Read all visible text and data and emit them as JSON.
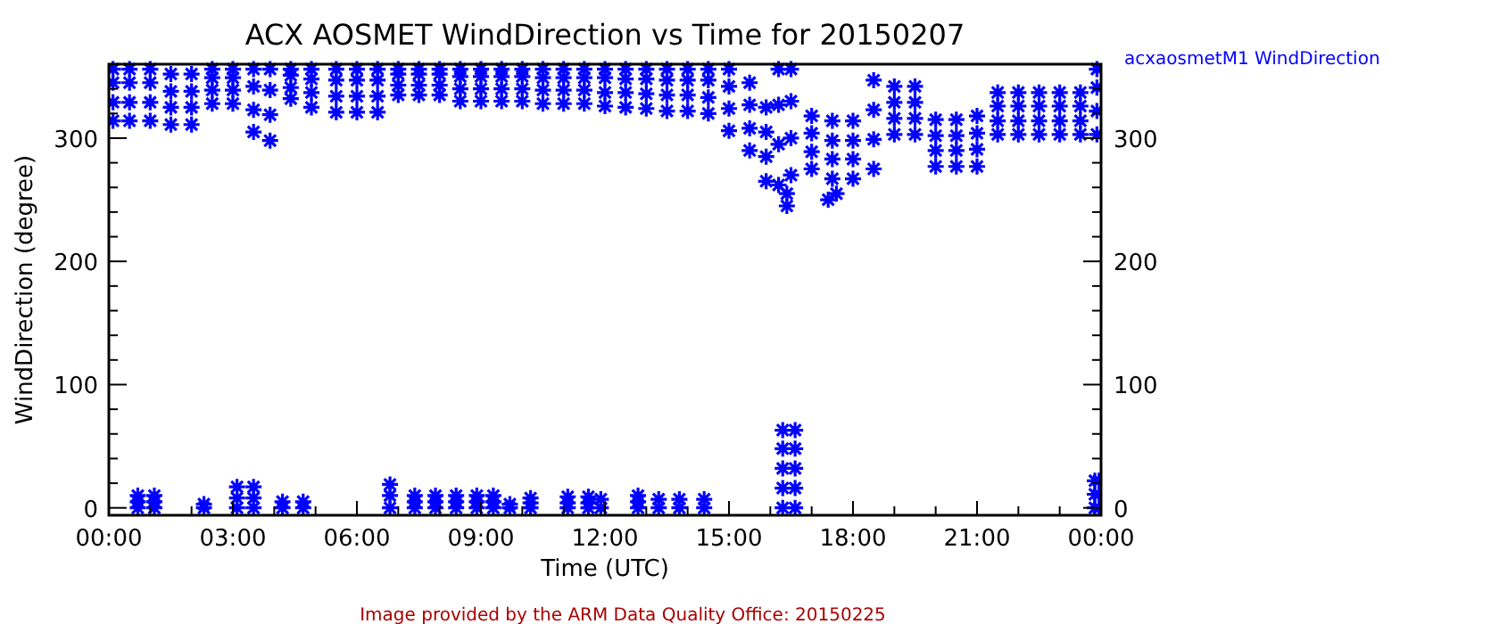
{
  "chart_data": {
    "type": "scatter",
    "title": "ACX AOSMET WindDirection vs Time for 20150207",
    "xlabel": "Time (UTC)",
    "ylabel": "WindDirection (degree)",
    "annotations": [
      "Image provided by the ARM Data Quality Office: 20150225"
    ],
    "xlim": [
      0,
      24
    ],
    "xticks": [
      {
        "value": 0,
        "label": "00:00"
      },
      {
        "value": 1,
        "label": null
      },
      {
        "value": 2,
        "label": null
      },
      {
        "value": 3,
        "label": "03:00"
      },
      {
        "value": 4,
        "label": null
      },
      {
        "value": 5,
        "label": null
      },
      {
        "value": 6,
        "label": "06:00"
      },
      {
        "value": 7,
        "label": null
      },
      {
        "value": 8,
        "label": null
      },
      {
        "value": 9,
        "label": "09:00"
      },
      {
        "value": 10,
        "label": null
      },
      {
        "value": 11,
        "label": null
      },
      {
        "value": 12,
        "label": "12:00"
      },
      {
        "value": 13,
        "label": null
      },
      {
        "value": 14,
        "label": null
      },
      {
        "value": 15,
        "label": "15:00"
      },
      {
        "value": 16,
        "label": null
      },
      {
        "value": 17,
        "label": null
      },
      {
        "value": 18,
        "label": "18:00"
      },
      {
        "value": 19,
        "label": null
      },
      {
        "value": 20,
        "label": null
      },
      {
        "value": 21,
        "label": "21:00"
      },
      {
        "value": 22,
        "label": null
      },
      {
        "value": 23,
        "label": null
      },
      {
        "value": 24,
        "label": "00:00"
      }
    ],
    "ylim": [
      -6,
      360
    ],
    "yticks": [
      0,
      {
        "value": 20,
        "label": null
      },
      {
        "value": 40,
        "label": null
      },
      {
        "value": 60,
        "label": null
      },
      {
        "value": 80,
        "label": null
      },
      100,
      {
        "value": 120,
        "label": null
      },
      {
        "value": 140,
        "label": null
      },
      {
        "value": 160,
        "label": null
      },
      {
        "value": 180,
        "label": null
      },
      200,
      {
        "value": 220,
        "label": null
      },
      {
        "value": 240,
        "label": null
      },
      {
        "value": 260,
        "label": null
      },
      {
        "value": 280,
        "label": null
      },
      300,
      {
        "value": 320,
        "label": null
      },
      {
        "value": 340,
        "label": null
      }
    ],
    "y2lim": [
      -6,
      360
    ],
    "y2ticks": [
      0,
      {
        "value": 20,
        "label": null
      },
      {
        "value": 40,
        "label": null
      },
      {
        "value": 60,
        "label": null
      },
      {
        "value": 80,
        "label": null
      },
      100,
      {
        "value": 120,
        "label": null
      },
      {
        "value": 140,
        "label": null
      },
      {
        "value": 160,
        "label": null
      },
      {
        "value": 180,
        "label": null
      },
      200,
      {
        "value": 220,
        "label": null
      },
      {
        "value": 240,
        "label": null
      },
      {
        "value": 260,
        "label": null
      },
      {
        "value": 280,
        "label": null
      },
      300,
      {
        "value": 320,
        "label": null
      },
      {
        "value": 340,
        "label": null
      }
    ],
    "grid": false,
    "legend": "top right",
    "marker": "cross",
    "series": [
      {
        "name": "acxaosmetM1 WindDirection",
        "color": "#0000ff",
        "x": [
          0.1,
          0.1,
          0.1,
          0.1,
          0.5,
          0.5,
          0.5,
          0.5,
          1.0,
          1.0,
          1.0,
          1.0,
          1.5,
          1.5,
          1.5,
          1.5,
          2.0,
          2.0,
          2.0,
          2.0,
          2.5,
          2.5,
          2.5,
          2.5,
          3.0,
          3.0,
          3.0,
          3.0,
          3.5,
          3.5,
          3.5,
          3.5,
          3.9,
          3.9,
          3.9,
          3.9,
          4.4,
          4.4,
          4.4,
          4.4,
          4.9,
          4.9,
          4.9,
          4.9,
          5.5,
          5.5,
          5.5,
          5.5,
          6.0,
          6.0,
          6.0,
          6.0,
          6.5,
          6.5,
          6.5,
          6.5,
          7.0,
          7.0,
          7.0,
          7.0,
          7.5,
          7.5,
          7.5,
          7.5,
          8.0,
          8.0,
          8.0,
          8.0,
          8.5,
          8.5,
          8.5,
          8.5,
          9.0,
          9.0,
          9.0,
          9.0,
          9.5,
          9.5,
          9.5,
          9.5,
          10.0,
          10.0,
          10.0,
          10.0,
          10.5,
          10.5,
          10.5,
          10.5,
          11.0,
          11.0,
          11.0,
          11.0,
          11.5,
          11.5,
          11.5,
          11.5,
          12.0,
          12.0,
          12.0,
          12.0,
          12.5,
          12.5,
          12.5,
          12.5,
          13.0,
          13.0,
          13.0,
          13.0,
          13.5,
          13.5,
          13.5,
          13.5,
          14.0,
          14.0,
          14.0,
          14.0,
          14.5,
          14.5,
          14.5,
          14.5,
          15.0,
          15.0,
          15.0,
          15.0,
          15.5,
          15.5,
          15.5,
          15.5,
          15.9,
          15.9,
          15.9,
          15.9,
          16.2,
          16.2,
          16.2,
          16.2,
          16.5,
          16.5,
          16.5,
          16.5,
          17.0,
          17.0,
          17.0,
          17.0,
          17.5,
          17.5,
          17.5,
          17.5,
          18.0,
          18.0,
          18.0,
          18.0,
          18.5,
          18.5,
          18.5,
          18.5,
          19.0,
          19.0,
          19.0,
          19.0,
          19.5,
          19.5,
          19.5,
          19.5,
          20.0,
          20.0,
          20.0,
          20.0,
          20.5,
          20.5,
          20.5,
          20.5,
          21.0,
          21.0,
          21.0,
          21.0,
          21.5,
          21.5,
          21.5,
          21.5,
          22.0,
          22.0,
          22.0,
          22.0,
          22.5,
          22.5,
          22.5,
          22.5,
          23.0,
          23.0,
          23.0,
          23.0,
          23.5,
          23.5,
          23.5,
          23.5,
          23.9,
          23.9,
          23.9,
          23.9,
          16.4,
          16.4,
          17.4,
          17.6,
          0.7,
          0.7,
          0.7,
          1.1,
          1.1,
          1.1,
          2.3,
          2.3,
          3.1,
          3.1,
          3.1,
          3.5,
          3.5,
          3.5,
          4.2,
          4.2,
          4.7,
          4.7,
          6.8,
          6.8,
          6.8,
          7.4,
          7.4,
          7.4,
          7.9,
          7.9,
          7.9,
          8.4,
          8.4,
          8.4,
          8.9,
          8.9,
          8.9,
          9.3,
          9.3,
          9.3,
          9.7,
          9.7,
          10.2,
          10.2,
          10.2,
          11.1,
          11.1,
          11.1,
          11.6,
          11.6,
          11.6,
          11.9,
          11.9,
          12.8,
          12.8,
          12.8,
          13.3,
          13.3,
          13.8,
          13.8,
          14.4,
          14.4,
          16.3,
          16.3,
          16.3,
          16.3,
          16.3,
          16.6,
          16.6,
          16.6,
          16.6,
          16.6,
          23.85,
          23.85,
          23.85,
          23.95,
          23.95,
          23.95
        ],
        "values": [
          314,
          329,
          345,
          356,
          314,
          329,
          345,
          356,
          314,
          329,
          345,
          356,
          311,
          325,
          338,
          352,
          311,
          325,
          338,
          352,
          328,
          339,
          349,
          356,
          328,
          339,
          349,
          356,
          305,
          323,
          342,
          356,
          298,
          319,
          339,
          356,
          332,
          341,
          351,
          356,
          325,
          337,
          348,
          356,
          321,
          334,
          347,
          356,
          321,
          334,
          347,
          356,
          321,
          334,
          347,
          356,
          335,
          343,
          352,
          356,
          335,
          343,
          352,
          356,
          335,
          343,
          352,
          356,
          330,
          340,
          350,
          356,
          330,
          340,
          350,
          356,
          330,
          340,
          350,
          356,
          330,
          340,
          350,
          356,
          328,
          339,
          349,
          356,
          328,
          339,
          349,
          356,
          328,
          339,
          349,
          356,
          326,
          337,
          349,
          356,
          325,
          337,
          348,
          356,
          324,
          336,
          348,
          356,
          322,
          335,
          347,
          356,
          322,
          335,
          347,
          356,
          320,
          333,
          347,
          356,
          306,
          324,
          342,
          356,
          290,
          308,
          327,
          345,
          265,
          285,
          305,
          325,
          262,
          295,
          327,
          356,
          270,
          300,
          330,
          356,
          275,
          289,
          304,
          318,
          267,
          283,
          298,
          314,
          267,
          283,
          298,
          314,
          275,
          299,
          323,
          347,
          303,
          316,
          329,
          342,
          303,
          316,
          329,
          342,
          277,
          290,
          302,
          315,
          277,
          290,
          302,
          315,
          277,
          291,
          304,
          318,
          303,
          314,
          326,
          337,
          303,
          314,
          326,
          337,
          303,
          314,
          326,
          337,
          303,
          314,
          326,
          337,
          303,
          314,
          326,
          337,
          303,
          322,
          341,
          356,
          245,
          255,
          250,
          255,
          0,
          5,
          10,
          0,
          5,
          10,
          0,
          3,
          0,
          8,
          17,
          0,
          8,
          17,
          0,
          5,
          0,
          5,
          0,
          10,
          19,
          0,
          5,
          10,
          0,
          5,
          10,
          0,
          5,
          10,
          0,
          5,
          10,
          0,
          5,
          10,
          0,
          3,
          0,
          4,
          8,
          0,
          4,
          9,
          0,
          4,
          9,
          0,
          7,
          0,
          5,
          10,
          0,
          7,
          0,
          7,
          0,
          7,
          0,
          16,
          32,
          48,
          63,
          0,
          16,
          32,
          48,
          63,
          0,
          11,
          22,
          0,
          11,
          22
        ]
      }
    ]
  }
}
